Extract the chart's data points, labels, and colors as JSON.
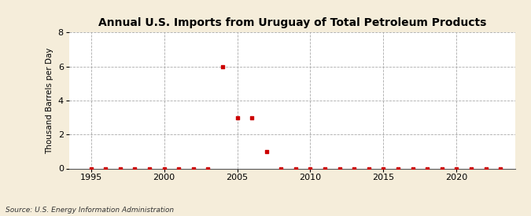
{
  "title": "Annual U.S. Imports from Uruguay of Total Petroleum Products",
  "ylabel": "Thousand Barrels per Day",
  "source": "Source: U.S. Energy Information Administration",
  "xlim": [
    1993.5,
    2024
  ],
  "ylim": [
    0,
    8
  ],
  "yticks": [
    0,
    2,
    4,
    6,
    8
  ],
  "xticks": [
    1995,
    2000,
    2005,
    2010,
    2015,
    2020
  ],
  "background_color": "#f5edda",
  "plot_background_color": "#ffffff",
  "grid_color": "#aaaaaa",
  "marker_color": "#cc0000",
  "data_points": {
    "1995": 0,
    "1996": 0,
    "1997": 0,
    "1998": 0,
    "1999": 0,
    "2000": 0,
    "2001": 0,
    "2002": 0,
    "2003": 0,
    "2004": 6,
    "2005": 3,
    "2006": 3,
    "2007": 1,
    "2008": 0,
    "2009": 0,
    "2010": 0,
    "2011": 0,
    "2012": 0,
    "2013": 0,
    "2014": 0,
    "2015": 0,
    "2016": 0,
    "2017": 0,
    "2018": 0,
    "2019": 0,
    "2020": 0,
    "2021": 0,
    "2022": 0,
    "2023": 0
  }
}
